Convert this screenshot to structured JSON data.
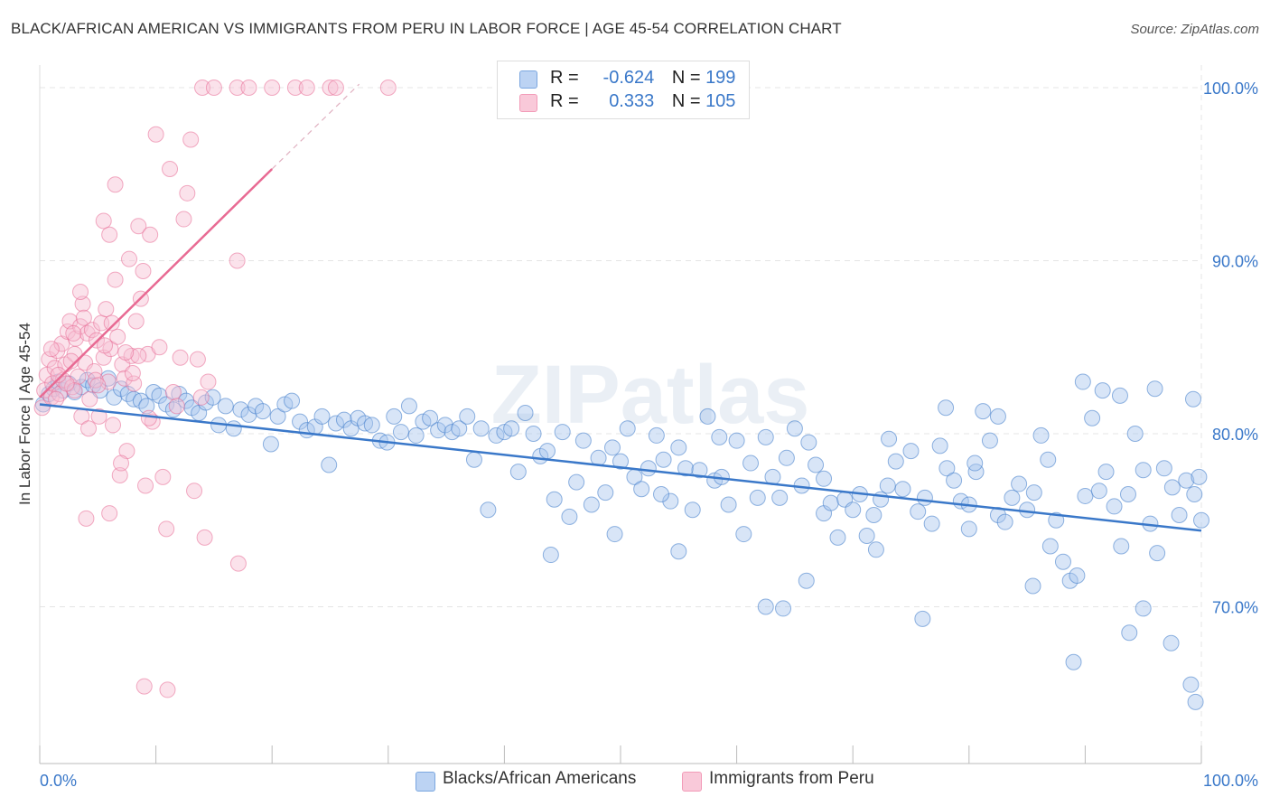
{
  "title": "BLACK/AFRICAN AMERICAN VS IMMIGRANTS FROM PERU IN LABOR FORCE | AGE 45-54 CORRELATION CHART",
  "source": "Source: ZipAtlas.com",
  "legend": {
    "r_label": "R =",
    "n_label": "N =",
    "rows": [
      {
        "r": "-0.624",
        "n": "199",
        "color": "#7ba7e0"
      },
      {
        "r": "0.333",
        "n": "105",
        "color": "#f29bb8"
      }
    ]
  },
  "bottom_legend": [
    {
      "label": "Blacks/African Americans",
      "color": "#7ba7e0"
    },
    {
      "label": "Immigrants from Peru",
      "color": "#f29bb8"
    }
  ],
  "chart_data": {
    "type": "scatter",
    "title": "BLACK/AFRICAN AMERICAN VS IMMIGRANTS FROM PERU IN LABOR FORCE | AGE 45-54 CORRELATION CHART",
    "xlabel": "",
    "ylabel": "In Labor Force | Age 45-54",
    "xlim": [
      0,
      100
    ],
    "ylim": [
      62,
      101
    ],
    "x_tick_labels": [
      "0.0%",
      "100.0%"
    ],
    "y_ticks": [
      70,
      80,
      90,
      100
    ],
    "y_tick_labels": [
      "70.0%",
      "80.0%",
      "90.0%",
      "100.0%"
    ],
    "grid": true,
    "watermark": "ZIPatlas",
    "series": [
      {
        "name": "Blacks/African Americans",
        "color": "#3a78c9",
        "fill": "#a9c6ee",
        "r": -0.624,
        "n": 199,
        "trend": {
          "x": [
            0,
            100
          ],
          "y": [
            81.7,
            74.4
          ]
        },
        "points": [
          [
            0.3,
            81.7
          ],
          [
            0.8,
            82.3
          ],
          [
            1.2,
            82.6
          ],
          [
            1.6,
            83.0
          ],
          [
            2.0,
            82.5
          ],
          [
            2.5,
            82.9
          ],
          [
            3.0,
            82.4
          ],
          [
            3.6,
            82.7
          ],
          [
            4.1,
            83.1
          ],
          [
            4.6,
            82.8
          ],
          [
            5.2,
            82.5
          ],
          [
            5.9,
            83.2
          ],
          [
            6.4,
            82.1
          ],
          [
            7.0,
            82.6
          ],
          [
            7.6,
            82.3
          ],
          [
            8.1,
            82.0
          ],
          [
            8.7,
            81.9
          ],
          [
            9.2,
            81.6
          ],
          [
            9.8,
            82.4
          ],
          [
            10.3,
            82.2
          ],
          [
            10.9,
            81.7
          ],
          [
            11.5,
            81.4
          ],
          [
            12.0,
            82.3
          ],
          [
            12.6,
            81.9
          ],
          [
            13.1,
            81.5
          ],
          [
            13.7,
            81.2
          ],
          [
            14.3,
            81.8
          ],
          [
            14.9,
            82.1
          ],
          [
            15.4,
            80.5
          ],
          [
            16.0,
            81.6
          ],
          [
            16.7,
            80.3
          ],
          [
            17.3,
            81.4
          ],
          [
            18.0,
            81.1
          ],
          [
            18.6,
            81.6
          ],
          [
            19.2,
            81.3
          ],
          [
            19.9,
            79.4
          ],
          [
            20.5,
            81.0
          ],
          [
            21.1,
            81.7
          ],
          [
            21.7,
            81.9
          ],
          [
            22.4,
            80.7
          ],
          [
            23.0,
            80.2
          ],
          [
            23.7,
            80.4
          ],
          [
            24.3,
            81.0
          ],
          [
            24.9,
            78.2
          ],
          [
            25.5,
            80.6
          ],
          [
            26.2,
            80.8
          ],
          [
            26.8,
            80.3
          ],
          [
            27.4,
            80.9
          ],
          [
            28.0,
            80.6
          ],
          [
            28.6,
            80.5
          ],
          [
            29.3,
            79.6
          ],
          [
            29.9,
            79.5
          ],
          [
            30.5,
            81.0
          ],
          [
            31.1,
            80.1
          ],
          [
            31.8,
            81.6
          ],
          [
            32.4,
            79.9
          ],
          [
            33.0,
            80.7
          ],
          [
            33.6,
            80.9
          ],
          [
            34.3,
            80.2
          ],
          [
            34.9,
            80.5
          ],
          [
            35.5,
            80.1
          ],
          [
            36.1,
            80.3
          ],
          [
            36.8,
            81.0
          ],
          [
            37.4,
            78.5
          ],
          [
            38.0,
            80.3
          ],
          [
            38.6,
            75.6
          ],
          [
            39.3,
            79.9
          ],
          [
            40.0,
            80.1
          ],
          [
            40.6,
            80.3
          ],
          [
            41.2,
            77.8
          ],
          [
            41.8,
            81.2
          ],
          [
            42.5,
            80.0
          ],
          [
            43.1,
            78.7
          ],
          [
            43.7,
            79.0
          ],
          [
            44.3,
            76.2
          ],
          [
            45.0,
            80.1
          ],
          [
            45.6,
            75.2
          ],
          [
            46.2,
            77.2
          ],
          [
            46.8,
            79.6
          ],
          [
            47.5,
            75.9
          ],
          [
            48.1,
            78.6
          ],
          [
            48.7,
            76.6
          ],
          [
            49.3,
            79.2
          ],
          [
            50.0,
            78.4
          ],
          [
            50.6,
            80.3
          ],
          [
            51.2,
            77.5
          ],
          [
            51.8,
            76.8
          ],
          [
            52.4,
            78.0
          ],
          [
            53.1,
            79.9
          ],
          [
            53.7,
            78.5
          ],
          [
            54.3,
            76.1
          ],
          [
            55.0,
            79.2
          ],
          [
            55.6,
            78.0
          ],
          [
            56.2,
            75.6
          ],
          [
            56.8,
            77.9
          ],
          [
            57.5,
            81.0
          ],
          [
            58.1,
            77.3
          ],
          [
            58.7,
            77.5
          ],
          [
            59.3,
            75.9
          ],
          [
            60.0,
            79.6
          ],
          [
            60.6,
            74.2
          ],
          [
            61.2,
            78.3
          ],
          [
            61.8,
            76.3
          ],
          [
            62.5,
            79.8
          ],
          [
            63.1,
            77.5
          ],
          [
            63.7,
            76.3
          ],
          [
            64.3,
            78.6
          ],
          [
            65.0,
            80.3
          ],
          [
            65.6,
            77.0
          ],
          [
            66.2,
            79.5
          ],
          [
            66.8,
            78.2
          ],
          [
            67.5,
            75.4
          ],
          [
            68.1,
            76.0
          ],
          [
            68.7,
            74.0
          ],
          [
            69.3,
            76.2
          ],
          [
            70.0,
            75.6
          ],
          [
            70.6,
            76.5
          ],
          [
            71.2,
            74.1
          ],
          [
            71.8,
            75.3
          ],
          [
            72.4,
            76.2
          ],
          [
            73.1,
            79.7
          ],
          [
            73.7,
            78.4
          ],
          [
            74.3,
            76.8
          ],
          [
            75.0,
            79.0
          ],
          [
            75.6,
            75.5
          ],
          [
            76.2,
            76.3
          ],
          [
            76.8,
            74.8
          ],
          [
            77.5,
            79.3
          ],
          [
            78.1,
            78.0
          ],
          [
            78.7,
            77.3
          ],
          [
            79.3,
            76.1
          ],
          [
            80.0,
            75.9
          ],
          [
            80.6,
            77.8
          ],
          [
            81.2,
            81.3
          ],
          [
            81.8,
            79.6
          ],
          [
            82.5,
            75.3
          ],
          [
            83.1,
            74.9
          ],
          [
            83.7,
            76.3
          ],
          [
            84.3,
            77.1
          ],
          [
            85.0,
            75.6
          ],
          [
            85.6,
            76.6
          ],
          [
            86.2,
            79.9
          ],
          [
            86.8,
            78.5
          ],
          [
            87.5,
            75.0
          ],
          [
            88.1,
            72.6
          ],
          [
            88.7,
            71.5
          ],
          [
            89.3,
            71.8
          ],
          [
            90.0,
            76.4
          ],
          [
            90.6,
            80.9
          ],
          [
            91.2,
            76.7
          ],
          [
            91.8,
            77.8
          ],
          [
            92.5,
            75.8
          ],
          [
            93.1,
            73.5
          ],
          [
            93.7,
            76.5
          ],
          [
            94.3,
            80.0
          ],
          [
            95.0,
            77.9
          ],
          [
            95.6,
            74.8
          ],
          [
            96.2,
            73.1
          ],
          [
            96.8,
            78.0
          ],
          [
            97.5,
            76.9
          ],
          [
            98.1,
            75.3
          ],
          [
            98.7,
            77.3
          ],
          [
            99.4,
            76.5
          ],
          [
            99.8,
            77.5
          ],
          [
            100.0,
            75.0
          ],
          [
            78.0,
            81.5
          ],
          [
            72.0,
            73.3
          ],
          [
            64.0,
            69.9
          ],
          [
            76.0,
            69.3
          ],
          [
            87.0,
            73.5
          ],
          [
            93.8,
            68.5
          ],
          [
            97.4,
            67.9
          ],
          [
            99.1,
            65.5
          ],
          [
            89.0,
            66.8
          ],
          [
            80.0,
            74.5
          ],
          [
            62.5,
            70.0
          ],
          [
            55.0,
            73.2
          ],
          [
            85.5,
            71.2
          ],
          [
            66.0,
            71.5
          ],
          [
            44.0,
            73.0
          ],
          [
            95.0,
            69.9
          ],
          [
            99.5,
            64.5
          ],
          [
            91.5,
            82.5
          ],
          [
            96.0,
            82.6
          ],
          [
            99.3,
            82.0
          ],
          [
            89.8,
            83.0
          ],
          [
            93.0,
            82.2
          ],
          [
            82.5,
            81.0
          ],
          [
            80.5,
            78.3
          ],
          [
            73.0,
            77.0
          ],
          [
            67.5,
            77.4
          ],
          [
            58.5,
            79.8
          ],
          [
            53.5,
            76.5
          ],
          [
            49.5,
            74.2
          ]
        ]
      },
      {
        "name": "Immigrants from Peru",
        "color": "#e86a93",
        "fill": "#f6bfd2",
        "r": 0.333,
        "n": 105,
        "trend": {
          "x": [
            0,
            20
          ],
          "y": [
            82.1,
            95.3
          ]
        },
        "trend_dashed": {
          "x": [
            20,
            27.5
          ],
          "y": [
            95.3,
            100.2
          ]
        },
        "points": [
          [
            0.2,
            81.5
          ],
          [
            0.4,
            82.5
          ],
          [
            0.6,
            83.4
          ],
          [
            0.8,
            84.3
          ],
          [
            1.0,
            82.1
          ],
          [
            1.1,
            82.9
          ],
          [
            1.3,
            83.8
          ],
          [
            1.5,
            84.8
          ],
          [
            1.7,
            82.3
          ],
          [
            1.9,
            85.2
          ],
          [
            2.0,
            83.1
          ],
          [
            2.2,
            84.0
          ],
          [
            2.4,
            85.9
          ],
          [
            2.6,
            86.5
          ],
          [
            2.8,
            82.7
          ],
          [
            3.0,
            84.6
          ],
          [
            3.1,
            85.5
          ],
          [
            3.3,
            83.3
          ],
          [
            3.5,
            86.2
          ],
          [
            3.7,
            87.5
          ],
          [
            3.9,
            84.1
          ],
          [
            4.1,
            85.8
          ],
          [
            4.3,
            82.0
          ],
          [
            4.5,
            86.0
          ],
          [
            4.7,
            83.6
          ],
          [
            4.9,
            85.4
          ],
          [
            5.1,
            81.0
          ],
          [
            5.3,
            86.4
          ],
          [
            5.5,
            84.4
          ],
          [
            5.7,
            87.2
          ],
          [
            5.9,
            83.0
          ],
          [
            6.1,
            84.9
          ],
          [
            6.3,
            80.5
          ],
          [
            6.5,
            88.9
          ],
          [
            6.7,
            85.6
          ],
          [
            6.9,
            77.6
          ],
          [
            7.1,
            84.0
          ],
          [
            7.3,
            83.2
          ],
          [
            7.5,
            79.0
          ],
          [
            7.7,
            90.1
          ],
          [
            7.9,
            84.5
          ],
          [
            8.1,
            82.9
          ],
          [
            8.3,
            86.5
          ],
          [
            8.5,
            92.0
          ],
          [
            8.7,
            87.8
          ],
          [
            8.9,
            89.4
          ],
          [
            9.1,
            77.0
          ],
          [
            9.3,
            84.6
          ],
          [
            9.5,
            91.5
          ],
          [
            9.7,
            80.7
          ],
          [
            10.0,
            97.3
          ],
          [
            10.3,
            85.0
          ],
          [
            10.6,
            77.5
          ],
          [
            10.9,
            74.5
          ],
          [
            11.2,
            95.3
          ],
          [
            11.5,
            82.4
          ],
          [
            11.8,
            81.6
          ],
          [
            12.1,
            84.4
          ],
          [
            12.4,
            92.4
          ],
          [
            12.7,
            93.9
          ],
          [
            13.0,
            97.0
          ],
          [
            13.3,
            76.7
          ],
          [
            13.6,
            84.3
          ],
          [
            13.9,
            82.1
          ],
          [
            14.2,
            74.0
          ],
          [
            14.5,
            83.0
          ],
          [
            17.1,
            72.5
          ],
          [
            14.0,
            100.0
          ],
          [
            15.0,
            100.0
          ],
          [
            17.0,
            100.0
          ],
          [
            18.0,
            100.0
          ],
          [
            20.0,
            100.0
          ],
          [
            22.0,
            100.0
          ],
          [
            23.0,
            100.0
          ],
          [
            25.0,
            100.0
          ],
          [
            25.5,
            100.0
          ],
          [
            30.0,
            100.0
          ],
          [
            17.0,
            90.0
          ],
          [
            3.5,
            88.2
          ],
          [
            5.5,
            92.3
          ],
          [
            6.5,
            94.4
          ],
          [
            6.0,
            91.5
          ],
          [
            8.5,
            84.5
          ],
          [
            7.0,
            78.3
          ],
          [
            6.0,
            75.4
          ],
          [
            4.0,
            75.1
          ],
          [
            9.0,
            65.4
          ],
          [
            11.0,
            65.2
          ],
          [
            3.0,
            82.5
          ],
          [
            4.8,
            83.1
          ],
          [
            2.3,
            82.9
          ],
          [
            1.4,
            82.0
          ],
          [
            1.6,
            83.4
          ],
          [
            2.9,
            85.8
          ],
          [
            3.6,
            81.0
          ],
          [
            4.2,
            80.3
          ],
          [
            5.0,
            82.8
          ],
          [
            6.2,
            86.4
          ],
          [
            7.4,
            84.7
          ],
          [
            8.0,
            83.5
          ],
          [
            1.0,
            84.9
          ],
          [
            2.7,
            84.2
          ],
          [
            3.8,
            86.7
          ],
          [
            5.6,
            85.1
          ],
          [
            9.4,
            80.9
          ]
        ]
      }
    ]
  }
}
